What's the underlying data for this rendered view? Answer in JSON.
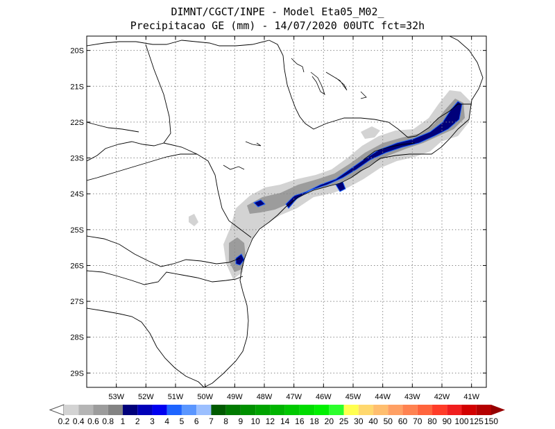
{
  "title_line1": "DIMNT/CGCT/INPE  -  Model Eta05_M02_",
  "title_line2": "Precipitacao GE (mm) - 14/07/2020 00UTC fct=32h",
  "map": {
    "lon_range": [
      -54,
      -40.5
    ],
    "lat_range": [
      -29.4,
      -19.6
    ],
    "lon_ticks": [
      {
        "value": -53,
        "label": "53W"
      },
      {
        "value": -52,
        "label": "52W"
      },
      {
        "value": -51,
        "label": "51W"
      },
      {
        "value": -50,
        "label": "50W"
      },
      {
        "value": -49,
        "label": "49W"
      },
      {
        "value": -48,
        "label": "48W"
      },
      {
        "value": -47,
        "label": "47W"
      },
      {
        "value": -46,
        "label": "46W"
      },
      {
        "value": -45,
        "label": "45W"
      },
      {
        "value": -44,
        "label": "44W"
      },
      {
        "value": -43,
        "label": "43W"
      },
      {
        "value": -42,
        "label": "42W"
      },
      {
        "value": -41,
        "label": "41W"
      }
    ],
    "lat_ticks": [
      {
        "value": -20,
        "label": "20S"
      },
      {
        "value": -21,
        "label": "21S"
      },
      {
        "value": -22,
        "label": "22S"
      },
      {
        "value": -23,
        "label": "23S"
      },
      {
        "value": -24,
        "label": "24S"
      },
      {
        "value": -25,
        "label": "25S"
      },
      {
        "value": -26,
        "label": "26S"
      },
      {
        "value": -27,
        "label": "27S"
      },
      {
        "value": -28,
        "label": "28S"
      },
      {
        "value": -29,
        "label": "29S"
      }
    ],
    "grid": "dotted"
  },
  "colorbar": {
    "labels": [
      "0.2",
      "0.4",
      "0.6",
      "0.8",
      "1",
      "2",
      "3",
      "4",
      "5",
      "6",
      "7",
      "8",
      "9",
      "10",
      "12",
      "14",
      "16",
      "18",
      "20",
      "25",
      "30",
      "40",
      "50",
      "60",
      "70",
      "80",
      "90",
      "100",
      "125",
      "150"
    ],
    "colors": [
      "#d3d3d3",
      "#b5b5b5",
      "#9c9c9c",
      "#838383",
      "#00007a",
      "#0000b8",
      "#0000f0",
      "#1e64ff",
      "#5a96ff",
      "#9bbfff",
      "#005a00",
      "#007a00",
      "#009000",
      "#00a300",
      "#00b400",
      "#00c800",
      "#00dc00",
      "#00f000",
      "#2cff2c",
      "#ffff50",
      "#ffd86e",
      "#ffbe6e",
      "#ffa064",
      "#ff8250",
      "#ff643c",
      "#ff3c28",
      "#f01e1e",
      "#d20000",
      "#b40000",
      "#960000"
    ]
  }
}
